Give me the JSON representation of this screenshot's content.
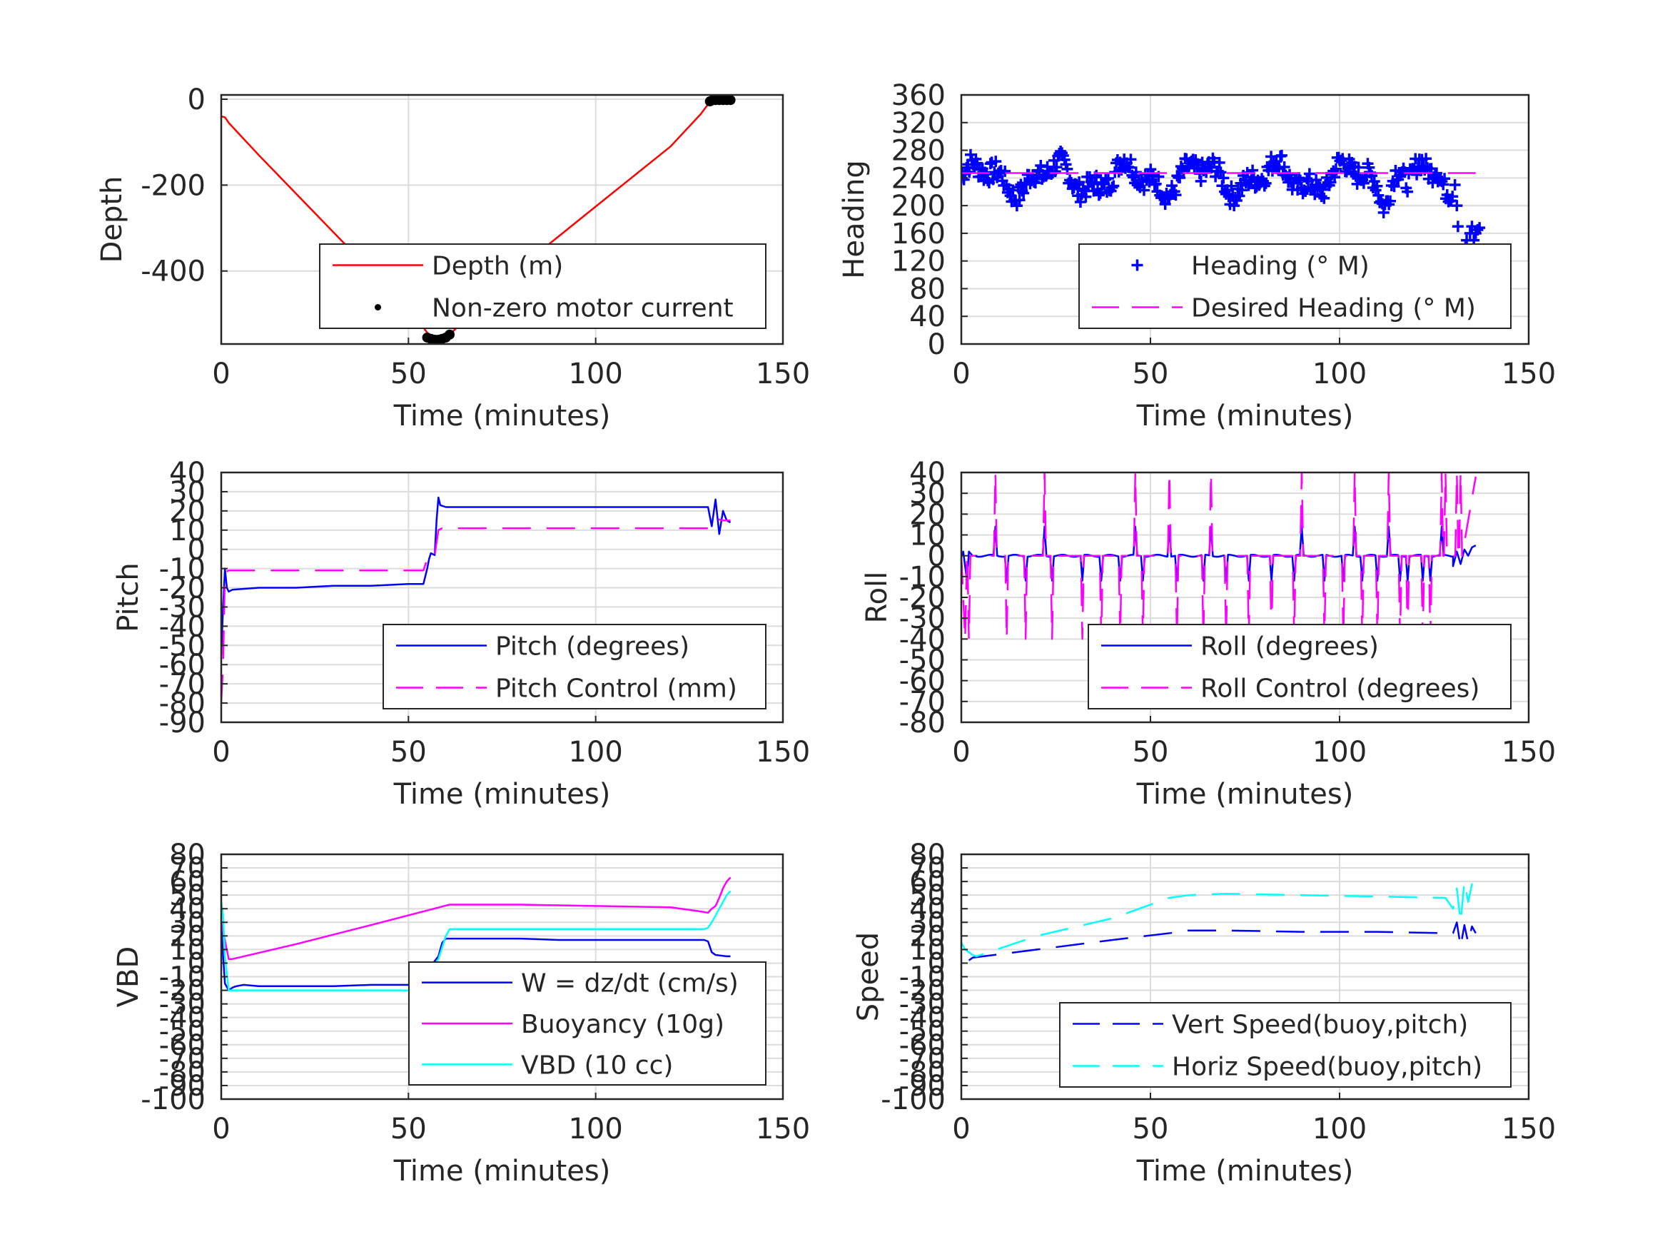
{
  "chart_data": [
    {
      "type": "line",
      "id": "depth",
      "xlabel": "Time (minutes)",
      "ylabel": "Depth",
      "xlim": [
        0,
        150
      ],
      "ylim": [
        -570,
        10
      ],
      "xticks": [
        0,
        50,
        100,
        150
      ],
      "yticks": [
        0,
        -200,
        -400
      ],
      "grid": true,
      "legend_position": "bottom-right",
      "series": [
        {
          "name": "Depth (m)",
          "style": "line",
          "color": "#ff0000",
          "x": [
            0,
            1,
            2,
            10,
            20,
            30,
            40,
            50,
            56,
            58,
            60,
            62,
            70,
            80,
            90,
            100,
            110,
            120,
            128,
            130,
            131
          ],
          "y": [
            -40,
            -42,
            -55,
            -130,
            -220,
            -310,
            -400,
            -485,
            -555,
            -560,
            -555,
            -540,
            -470,
            -390,
            -320,
            -250,
            -180,
            -110,
            -35,
            -12,
            -5
          ]
        },
        {
          "name": "Non-zero motor current",
          "style": "dots",
          "color": "#000000",
          "x": [
            55,
            56,
            57,
            58,
            59,
            60,
            61,
            130.5,
            131,
            132,
            133,
            134,
            135,
            136
          ],
          "y": [
            -555,
            -558,
            -560,
            -560,
            -558,
            -555,
            -548,
            -5,
            -3,
            -2,
            -2,
            -2,
            -2,
            -2
          ]
        }
      ]
    },
    {
      "type": "line",
      "id": "heading",
      "xlabel": "Time (minutes)",
      "ylabel": "Heading",
      "xlim": [
        0,
        150
      ],
      "ylim": [
        0,
        360
      ],
      "xticks": [
        0,
        50,
        100,
        150
      ],
      "yticks": [
        0,
        40,
        80,
        120,
        160,
        200,
        240,
        280,
        320,
        360
      ],
      "grid": true,
      "legend_position": "bottom-right",
      "series": [
        {
          "name": "Heading (° M)",
          "style": "plus",
          "color": "#0000ff"
        },
        {
          "name": "Desired Heading (° M)",
          "style": "dashed",
          "color": "#ff00ff",
          "x": [
            0,
            136
          ],
          "y": [
            247,
            247
          ]
        }
      ]
    },
    {
      "type": "line",
      "id": "pitch",
      "xlabel": "Time (minutes)",
      "ylabel": "Pitch",
      "xlim": [
        0,
        150
      ],
      "ylim": [
        -90,
        40
      ],
      "xticks": [
        0,
        50,
        100,
        150
      ],
      "yticks": [
        -90,
        -80,
        -70,
        -60,
        -50,
        -40,
        -30,
        -20,
        -10,
        0,
        10,
        20,
        30,
        40
      ],
      "grid": true,
      "legend_position": "bottom-right",
      "series": [
        {
          "name": "Pitch (degrees)",
          "style": "solid",
          "color": "#0000ff",
          "x": [
            0,
            0.5,
            1,
            1.5,
            2,
            3,
            10,
            20,
            30,
            40,
            50,
            54,
            55,
            55.5,
            56,
            57,
            57.5,
            58,
            58.5,
            60,
            70,
            80,
            90,
            100,
            110,
            120,
            128,
            130,
            131,
            132,
            133,
            134,
            135,
            136
          ],
          "y": [
            -55,
            -30,
            -10,
            -20,
            -22,
            -21,
            -20,
            -20,
            -19,
            -19,
            -18,
            -18,
            -10,
            -5,
            -2,
            -3,
            15,
            27,
            23,
            22,
            22,
            22,
            22,
            22,
            22,
            22,
            22,
            22,
            12,
            26,
            8,
            20,
            15,
            14
          ]
        },
        {
          "name": "Pitch Control (mm)",
          "style": "dashed",
          "color": "#ff00ff",
          "x": [
            0,
            0.5,
            1,
            2,
            20,
            40,
            50,
            54,
            55,
            56,
            57,
            58,
            59,
            70,
            90,
            110,
            128,
            130,
            131,
            132,
            134,
            136
          ],
          "y": [
            -80,
            -60,
            -12,
            -11,
            -11,
            -11,
            -11,
            -11,
            -5,
            -2,
            -3,
            10,
            11,
            11,
            11,
            11,
            11,
            11,
            12,
            16,
            15,
            15
          ]
        }
      ]
    },
    {
      "type": "line",
      "id": "roll",
      "xlabel": "Time (minutes)",
      "ylabel": "Roll",
      "xlim": [
        0,
        150
      ],
      "ylim": [
        -80,
        40
      ],
      "xticks": [
        0,
        50,
        100,
        150
      ],
      "yticks": [
        -80,
        -70,
        -60,
        -50,
        -40,
        -30,
        -20,
        -10,
        0,
        10,
        20,
        30,
        40
      ],
      "grid": true,
      "legend_position": "bottom-right",
      "series": [
        {
          "name": "Roll (degrees)",
          "style": "solid",
          "color": "#0000ff"
        },
        {
          "name": "Roll Control (degrees)",
          "style": "dashed",
          "color": "#ff00ff"
        }
      ]
    },
    {
      "type": "line",
      "id": "vbd",
      "xlabel": "Time (minutes)",
      "ylabel": "VBD",
      "xlim": [
        0,
        150
      ],
      "ylim": [
        -100,
        80
      ],
      "xticks": [
        0,
        50,
        100,
        150
      ],
      "yticks": [
        -100,
        -90,
        -80,
        -70,
        -60,
        -50,
        -40,
        -30,
        -20,
        -10,
        0,
        10,
        20,
        30,
        40,
        50,
        60,
        70,
        80
      ],
      "grid": true,
      "legend_position": "bottom-right",
      "series": [
        {
          "name": "W = dz/dt (cm/s)",
          "style": "solid",
          "color": "#0000ff",
          "x": [
            0,
            0.5,
            1,
            2,
            3,
            4,
            6,
            10,
            20,
            30,
            40,
            50,
            54,
            55,
            56,
            58,
            59,
            60,
            61,
            70,
            80,
            90,
            100,
            110,
            120,
            128,
            129,
            130,
            131,
            132,
            135,
            136
          ],
          "y": [
            30,
            5,
            -15,
            -20,
            -18,
            -17,
            -16,
            -17,
            -17,
            -17,
            -16,
            -16,
            -16,
            -10,
            -2,
            5,
            15,
            18,
            18,
            18,
            18,
            17,
            17,
            17,
            17,
            17,
            17,
            16,
            8,
            6,
            5,
            5
          ]
        },
        {
          "name": "Buoyancy (10g)",
          "style": "solid",
          "color": "#ff00ff",
          "x": [
            0,
            2,
            3,
            20,
            40,
            61,
            70,
            80,
            100,
            120,
            128,
            130,
            131,
            132,
            133,
            134,
            135,
            136
          ],
          "y": [
            30,
            3,
            3,
            14,
            28,
            43,
            43,
            43,
            42,
            41,
            38,
            37,
            40,
            42,
            48,
            55,
            60,
            63
          ]
        },
        {
          "name": "VBD (10 cc)",
          "style": "solid",
          "color": "#00ffff",
          "x": [
            0,
            0.5,
            1,
            2,
            3,
            4,
            10,
            20,
            30,
            40,
            50,
            54,
            55,
            56,
            58,
            60,
            61,
            62,
            70,
            80,
            90,
            100,
            110,
            120,
            128,
            129,
            130,
            131,
            132,
            133,
            134,
            135,
            136
          ],
          "y": [
            45,
            35,
            5,
            -20,
            -20,
            -20,
            -20,
            -20,
            -20,
            -20,
            -20,
            -20,
            -15,
            -5,
            3,
            20,
            25,
            25,
            25,
            25,
            25,
            25,
            25,
            25,
            25,
            25,
            26,
            30,
            35,
            40,
            45,
            50,
            53
          ]
        }
      ]
    },
    {
      "type": "line",
      "id": "speed",
      "xlabel": "Time (minutes)",
      "ylabel": "Speed",
      "xlim": [
        0,
        150
      ],
      "ylim": [
        -100,
        80
      ],
      "xticks": [
        0,
        50,
        100,
        150
      ],
      "yticks": [
        -100,
        -90,
        -80,
        -70,
        -60,
        -50,
        -40,
        -30,
        -20,
        -10,
        0,
        10,
        20,
        30,
        40,
        50,
        60,
        70,
        80
      ],
      "grid": true,
      "legend_position": "bottom-right",
      "series": [
        {
          "name": "Vert Speed(buoy,pitch)",
          "style": "dashed",
          "color": "#0000ff",
          "x": [
            2,
            3,
            20,
            40,
            58,
            60,
            70,
            90,
            110,
            128,
            130,
            131,
            132,
            133,
            134,
            135,
            136
          ],
          "y": [
            2,
            4,
            10,
            17,
            23,
            24,
            24,
            23,
            23,
            22,
            22,
            30,
            12,
            28,
            15,
            27,
            22
          ]
        },
        {
          "name": "Horiz Speed(buoy,pitch)",
          "style": "dashed",
          "color": "#00ffff",
          "x": [
            0,
            1,
            2,
            3,
            4,
            20,
            40,
            55,
            60,
            70,
            90,
            110,
            128,
            130,
            131,
            132,
            133,
            134,
            135,
            136
          ],
          "y": [
            15,
            10,
            8,
            6,
            5,
            20,
            33,
            48,
            50,
            51,
            50,
            49,
            48,
            40,
            55,
            30,
            60,
            45,
            58,
            55
          ]
        }
      ]
    }
  ]
}
